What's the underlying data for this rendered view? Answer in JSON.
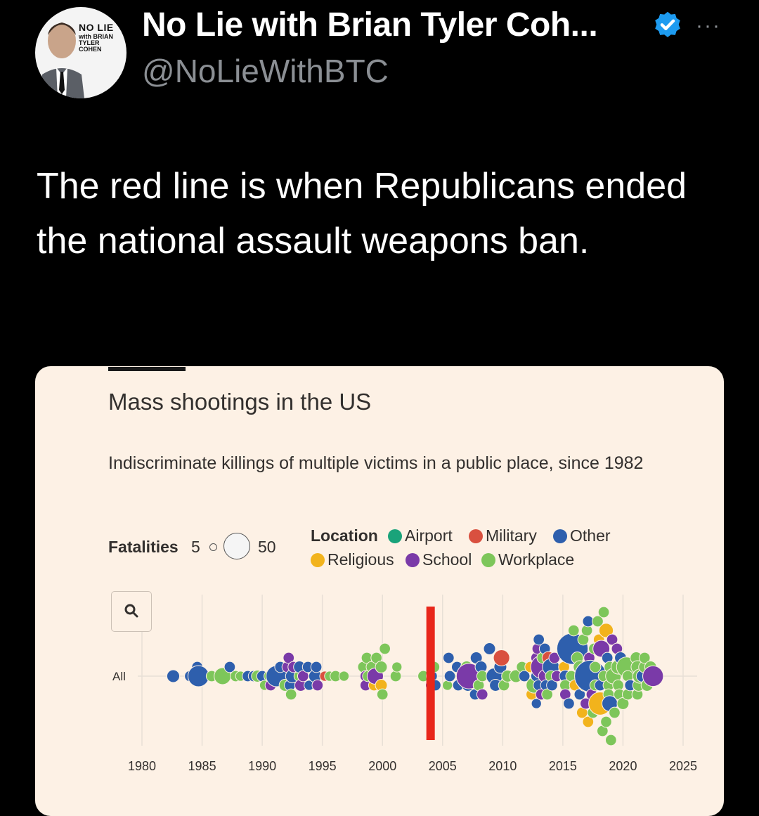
{
  "tweet": {
    "display_name": "No Lie with Brian Tyler Coh...",
    "handle": "@NoLieWithBTC",
    "avatar_text": "NO LIE",
    "avatar_subtext": "with BRIAN TYLER COHEN",
    "more_label": "···",
    "text": "The red line is when Republicans ended the national assault weapons ban."
  },
  "colors": {
    "airport": "#1aa37a",
    "military": "#d9503f",
    "other": "#2e5fad",
    "religious": "#f2b31c",
    "school": "#7a3aa8",
    "workplace": "#7dc65a",
    "red_line": "#e8261a",
    "card_bg": "#fdf1e5",
    "verified": "#1d9bf0"
  },
  "chart_data": {
    "type": "scatter",
    "title": "Mass shootings in the US",
    "subtitle": "Indiscriminate killings of multiple victims in a public place, since 1982",
    "size_legend": {
      "label": "Fatalities",
      "min": "5",
      "max": "50"
    },
    "legend_title": "Location",
    "legend": [
      "Airport",
      "Military",
      "Other",
      "Religious",
      "School",
      "Workplace"
    ],
    "row_label": "All",
    "x_ticks": [
      "1980",
      "1985",
      "1990",
      "1995",
      "2000",
      "2005",
      "2010",
      "2015",
      "2020",
      "2025"
    ],
    "xlim": [
      1980,
      2025
    ],
    "grid": true,
    "annotation_line": {
      "year": 2004
    },
    "points": [
      {
        "x": 1982.6,
        "o": 0,
        "f": 8,
        "c": "other"
      },
      {
        "x": 1984.0,
        "o": 0,
        "f": 6,
        "c": "other"
      },
      {
        "x": 1984.6,
        "o": -1,
        "f": 6,
        "c": "other"
      },
      {
        "x": 1984.7,
        "o": 0,
        "f": 22,
        "c": "other"
      },
      {
        "x": 1985.8,
        "o": 0,
        "f": 6,
        "c": "workplace"
      },
      {
        "x": 1986.7,
        "o": 0,
        "f": 14,
        "c": "workplace"
      },
      {
        "x": 1987.3,
        "o": -1,
        "f": 6,
        "c": "other"
      },
      {
        "x": 1987.8,
        "o": 0,
        "f": 6,
        "c": "workplace"
      },
      {
        "x": 1988.2,
        "o": 0,
        "f": 5,
        "c": "workplace"
      },
      {
        "x": 1988.8,
        "o": 0,
        "f": 6,
        "c": "other"
      },
      {
        "x": 1989.3,
        "o": 0,
        "f": 6,
        "c": "other"
      },
      {
        "x": 1989.6,
        "o": 0,
        "f": 7,
        "c": "workplace"
      },
      {
        "x": 1990.0,
        "o": 0,
        "f": 6,
        "c": "other"
      },
      {
        "x": 1990.2,
        "o": 1,
        "f": 5,
        "c": "workplace"
      },
      {
        "x": 1990.6,
        "o": 0,
        "f": 6,
        "c": "workplace"
      },
      {
        "x": 1990.7,
        "o": 1,
        "f": 6,
        "c": "school"
      },
      {
        "x": 1991.2,
        "o": 0,
        "f": 22,
        "c": "other"
      },
      {
        "x": 1991.5,
        "o": -1,
        "f": 6,
        "c": "other"
      },
      {
        "x": 1991.9,
        "o": 1,
        "f": 7,
        "c": "workplace"
      },
      {
        "x": 1992.1,
        "o": -1,
        "f": 6,
        "c": "school"
      },
      {
        "x": 1992.2,
        "o": -2,
        "f": 6,
        "c": "school"
      },
      {
        "x": 1992.3,
        "o": 1,
        "f": 6,
        "c": "other"
      },
      {
        "x": 1992.4,
        "o": 2,
        "f": 6,
        "c": "workplace"
      },
      {
        "x": 1992.5,
        "o": 0,
        "f": 9,
        "c": "other"
      },
      {
        "x": 1992.6,
        "o": -1,
        "f": 6,
        "c": "school"
      },
      {
        "x": 1993.1,
        "o": 0,
        "f": 6,
        "c": "workplace"
      },
      {
        "x": 1993.1,
        "o": -1,
        "f": 7,
        "c": "other"
      },
      {
        "x": 1993.2,
        "o": 1,
        "f": 7,
        "c": "school"
      },
      {
        "x": 1993.4,
        "o": 0,
        "f": 6,
        "c": "school"
      },
      {
        "x": 1993.8,
        "o": -1,
        "f": 6,
        "c": "other"
      },
      {
        "x": 1993.9,
        "o": 1,
        "f": 5,
        "c": "other"
      },
      {
        "x": 1994.4,
        "o": 0,
        "f": 8,
        "c": "other"
      },
      {
        "x": 1994.5,
        "o": -1,
        "f": 6,
        "c": "other"
      },
      {
        "x": 1994.6,
        "o": 1,
        "f": 6,
        "c": "school"
      },
      {
        "x": 1995.2,
        "o": 0,
        "f": 5,
        "c": "military"
      },
      {
        "x": 1995.6,
        "o": 0,
        "f": 5,
        "c": "workplace"
      },
      {
        "x": 1996.1,
        "o": 0,
        "f": 6,
        "c": "workplace"
      },
      {
        "x": 1996.8,
        "o": 0,
        "f": 5,
        "c": "workplace"
      },
      {
        "x": 1998.4,
        "o": -1,
        "f": 6,
        "c": "workplace"
      },
      {
        "x": 1998.6,
        "o": 0,
        "f": 6,
        "c": "school"
      },
      {
        "x": 1998.6,
        "o": 1,
        "f": 6,
        "c": "school"
      },
      {
        "x": 1998.7,
        "o": -2,
        "f": 6,
        "c": "workplace"
      },
      {
        "x": 1998.8,
        "o": 0,
        "f": 6,
        "c": "workplace"
      },
      {
        "x": 1999.1,
        "o": -1,
        "f": 6,
        "c": "workplace"
      },
      {
        "x": 1999.3,
        "o": 1,
        "f": 6,
        "c": "religious"
      },
      {
        "x": 1999.4,
        "o": 0,
        "f": 13,
        "c": "school"
      },
      {
        "x": 1999.5,
        "o": -2,
        "f": 6,
        "c": "workplace"
      },
      {
        "x": 1999.9,
        "o": -1,
        "f": 7,
        "c": "workplace"
      },
      {
        "x": 1999.9,
        "o": 1,
        "f": 7,
        "c": "religious"
      },
      {
        "x": 2000.0,
        "o": 2,
        "f": 6,
        "c": "workplace"
      },
      {
        "x": 2000.2,
        "o": -3,
        "f": 6,
        "c": "workplace"
      },
      {
        "x": 2001.1,
        "o": 0,
        "f": 6,
        "c": "workplace"
      },
      {
        "x": 2001.2,
        "o": -1,
        "f": 5,
        "c": "workplace"
      },
      {
        "x": 2003.4,
        "o": 0,
        "f": 6,
        "c": "workplace"
      },
      {
        "x": 2004.0,
        "o": 1,
        "f": 5,
        "c": "school"
      },
      {
        "x": 2004.1,
        "o": 0,
        "f": 6,
        "c": "other"
      },
      {
        "x": 2004.3,
        "o": -1,
        "f": 6,
        "c": "workplace"
      },
      {
        "x": 2004.4,
        "o": 1,
        "f": 6,
        "c": "other"
      },
      {
        "x": 2005.5,
        "o": -2,
        "f": 6,
        "c": "other"
      },
      {
        "x": 2005.4,
        "o": 1,
        "f": 5,
        "c": "workplace"
      },
      {
        "x": 2005.6,
        "o": 0,
        "f": 6,
        "c": "other"
      },
      {
        "x": 2006.2,
        "o": -1,
        "f": 6,
        "c": "other"
      },
      {
        "x": 2006.3,
        "o": 1,
        "f": 6,
        "c": "other"
      },
      {
        "x": 2006.6,
        "o": 0,
        "f": 8,
        "c": "workplace"
      },
      {
        "x": 2007.0,
        "o": -1,
        "f": 7,
        "c": "workplace"
      },
      {
        "x": 2007.1,
        "o": 1,
        "f": 7,
        "c": "other"
      },
      {
        "x": 2007.2,
        "o": 0,
        "f": 32,
        "c": "school"
      },
      {
        "x": 2007.7,
        "o": 2,
        "f": 6,
        "c": "other"
      },
      {
        "x": 2007.8,
        "o": -2,
        "f": 7,
        "c": "other"
      },
      {
        "x": 2008.0,
        "o": 1,
        "f": 6,
        "c": "workplace"
      },
      {
        "x": 2008.2,
        "o": -1,
        "f": 7,
        "c": "other"
      },
      {
        "x": 2008.3,
        "o": 0,
        "f": 6,
        "c": "workplace"
      },
      {
        "x": 2008.3,
        "o": 2,
        "f": 6,
        "c": "school"
      },
      {
        "x": 2008.9,
        "o": -3,
        "f": 7,
        "c": "other"
      },
      {
        "x": 2009.3,
        "o": 0,
        "f": 13,
        "c": "other"
      },
      {
        "x": 2009.4,
        "o": 1,
        "f": 7,
        "c": "other"
      },
      {
        "x": 2009.8,
        "o": -1,
        "f": 8,
        "c": "other"
      },
      {
        "x": 2009.9,
        "o": -2,
        "f": 13,
        "c": "military"
      },
      {
        "x": 2010.1,
        "o": 1,
        "f": 6,
        "c": "workplace"
      },
      {
        "x": 2010.4,
        "o": 0,
        "f": 7,
        "c": "workplace"
      },
      {
        "x": 2011.1,
        "o": 0,
        "f": 8,
        "c": "workplace"
      },
      {
        "x": 2011.6,
        "o": -1,
        "f": 6,
        "c": "workplace"
      },
      {
        "x": 2011.8,
        "o": 0,
        "f": 6,
        "c": "other"
      },
      {
        "x": 2012.3,
        "o": -1,
        "f": 6,
        "c": "religious"
      },
      {
        "x": 2012.4,
        "o": 2,
        "f": 6,
        "c": "religious"
      },
      {
        "x": 2012.6,
        "o": 1,
        "f": 12,
        "c": "workplace"
      },
      {
        "x": 2012.8,
        "o": -2,
        "f": 6,
        "c": "school"
      },
      {
        "x": 2012.8,
        "o": 0,
        "f": 6,
        "c": "other"
      },
      {
        "x": 2012.8,
        "o": 3,
        "f": 5,
        "c": "other"
      },
      {
        "x": 2012.9,
        "o": -3,
        "f": 6,
        "c": "school"
      },
      {
        "x": 2013.0,
        "o": -4,
        "f": 6,
        "c": "other"
      },
      {
        "x": 2013.0,
        "o": 1,
        "f": 6,
        "c": "other"
      },
      {
        "x": 2013.2,
        "o": 2,
        "f": 6,
        "c": "school"
      },
      {
        "x": 2013.3,
        "o": -1,
        "f": 27,
        "c": "school"
      },
      {
        "x": 2013.3,
        "o": -2,
        "f": 6,
        "c": "workplace"
      },
      {
        "x": 2013.5,
        "o": 0,
        "f": 8,
        "c": "school"
      },
      {
        "x": 2013.5,
        "o": -3,
        "f": 6,
        "c": "other"
      },
      {
        "x": 2013.6,
        "o": 1,
        "f": 6,
        "c": "other"
      },
      {
        "x": 2013.7,
        "o": 2,
        "f": 6,
        "c": "workplace"
      },
      {
        "x": 2013.8,
        "o": -2,
        "f": 8,
        "c": "military"
      },
      {
        "x": 2014.0,
        "o": -1,
        "f": 14,
        "c": "other"
      },
      {
        "x": 2014.0,
        "o": 0,
        "f": 6,
        "c": "workplace"
      },
      {
        "x": 2014.1,
        "o": 1,
        "f": 6,
        "c": "other"
      },
      {
        "x": 2014.3,
        "o": -2,
        "f": 6,
        "c": "school"
      },
      {
        "x": 2014.5,
        "o": 0,
        "f": 6,
        "c": "school"
      },
      {
        "x": 2015.1,
        "o": -1,
        "f": 6,
        "c": "religious"
      },
      {
        "x": 2015.2,
        "o": 0,
        "f": 7,
        "c": "other"
      },
      {
        "x": 2015.2,
        "o": 1,
        "f": 6,
        "c": "workplace"
      },
      {
        "x": 2015.2,
        "o": 2,
        "f": 6,
        "c": "school"
      },
      {
        "x": 2015.3,
        "o": -3,
        "f": 6,
        "c": "workplace"
      },
      {
        "x": 2015.5,
        "o": 3,
        "f": 6,
        "c": "other"
      },
      {
        "x": 2015.6,
        "o": -4,
        "f": 6,
        "c": "workplace"
      },
      {
        "x": 2015.7,
        "o": 0,
        "f": 6,
        "c": "workplace"
      },
      {
        "x": 2015.8,
        "o": -3,
        "f": 48,
        "c": "other"
      },
      {
        "x": 2015.9,
        "o": -5,
        "f": 6,
        "c": "workplace"
      },
      {
        "x": 2016.0,
        "o": 1,
        "f": 6,
        "c": "religious"
      },
      {
        "x": 2016.2,
        "o": -2,
        "f": 7,
        "c": "workplace"
      },
      {
        "x": 2016.4,
        "o": -1,
        "f": 8,
        "c": "workplace"
      },
      {
        "x": 2016.4,
        "o": 2,
        "f": 6,
        "c": "other"
      },
      {
        "x": 2016.6,
        "o": 0,
        "f": 6,
        "c": "workplace"
      },
      {
        "x": 2016.6,
        "o": 4,
        "f": 6,
        "c": "religious"
      },
      {
        "x": 2016.7,
        "o": -4,
        "f": 6,
        "c": "workplace"
      },
      {
        "x": 2016.8,
        "o": 1,
        "f": 7,
        "c": "religious"
      },
      {
        "x": 2016.9,
        "o": 3,
        "f": 6,
        "c": "school"
      },
      {
        "x": 2017.0,
        "o": -5,
        "f": 6,
        "c": "workplace"
      },
      {
        "x": 2017.1,
        "o": 5,
        "f": 6,
        "c": "religious"
      },
      {
        "x": 2017.1,
        "o": -6,
        "f": 6,
        "c": "other"
      },
      {
        "x": 2017.2,
        "o": -2,
        "f": 6,
        "c": "school"
      },
      {
        "x": 2017.3,
        "o": 0,
        "f": 50,
        "c": "other"
      },
      {
        "x": 2017.4,
        "o": 2,
        "f": 6,
        "c": "school"
      },
      {
        "x": 2017.5,
        "o": 4,
        "f": 6,
        "c": "workplace"
      },
      {
        "x": 2017.6,
        "o": -3,
        "f": 6,
        "c": "workplace"
      },
      {
        "x": 2017.7,
        "o": 1,
        "f": 6,
        "c": "workplace"
      },
      {
        "x": 2017.7,
        "o": -1,
        "f": 6,
        "c": "workplace"
      },
      {
        "x": 2017.9,
        "o": -6,
        "f": 6,
        "c": "workplace"
      },
      {
        "x": 2018.0,
        "o": 3,
        "f": 6,
        "c": "workplace"
      },
      {
        "x": 2018.0,
        "o": -4,
        "f": 6,
        "c": "religious"
      },
      {
        "x": 2018.1,
        "o": 1,
        "f": 6,
        "c": "other"
      },
      {
        "x": 2018.1,
        "o": 3,
        "f": 26,
        "c": "religious"
      },
      {
        "x": 2018.2,
        "o": -3,
        "f": 14,
        "c": "school"
      },
      {
        "x": 2018.3,
        "o": 6,
        "f": 6,
        "c": "workplace"
      },
      {
        "x": 2018.4,
        "o": 0,
        "f": 6,
        "c": "workplace"
      },
      {
        "x": 2018.4,
        "o": -7,
        "f": 6,
        "c": "workplace"
      },
      {
        "x": 2018.6,
        "o": -5,
        "f": 10,
        "c": "religious"
      },
      {
        "x": 2018.6,
        "o": 5,
        "f": 6,
        "c": "workplace"
      },
      {
        "x": 2018.7,
        "o": -2,
        "f": 6,
        "c": "other"
      },
      {
        "x": 2018.8,
        "o": 1,
        "f": 6,
        "c": "workplace"
      },
      {
        "x": 2018.8,
        "o": 2,
        "f": 6,
        "c": "workplace"
      },
      {
        "x": 2018.9,
        "o": 3,
        "f": 12,
        "c": "other"
      },
      {
        "x": 2018.9,
        "o": -1,
        "f": 6,
        "c": "workplace"
      },
      {
        "x": 2019.0,
        "o": 7,
        "f": 6,
        "c": "workplace"
      },
      {
        "x": 2019.1,
        "o": -4,
        "f": 6,
        "c": "school"
      },
      {
        "x": 2019.2,
        "o": 0,
        "f": 12,
        "c": "workplace"
      },
      {
        "x": 2019.3,
        "o": 4,
        "f": 6,
        "c": "workplace"
      },
      {
        "x": 2019.5,
        "o": -3,
        "f": 6,
        "c": "school"
      },
      {
        "x": 2019.6,
        "o": 1,
        "f": 6,
        "c": "workplace"
      },
      {
        "x": 2019.6,
        "o": -1,
        "f": 10,
        "c": "workplace"
      },
      {
        "x": 2019.7,
        "o": 2,
        "f": 6,
        "c": "workplace"
      },
      {
        "x": 2019.8,
        "o": -2,
        "f": 7,
        "c": "other"
      },
      {
        "x": 2020.0,
        "o": 3,
        "f": 7,
        "c": "workplace"
      },
      {
        "x": 2020.3,
        "o": -1,
        "f": 20,
        "c": "workplace"
      },
      {
        "x": 2020.4,
        "o": 2,
        "f": 6,
        "c": "workplace"
      },
      {
        "x": 2020.4,
        "o": 0,
        "f": 6,
        "c": "workplace"
      },
      {
        "x": 2020.6,
        "o": 1,
        "f": 6,
        "c": "other"
      },
      {
        "x": 2021.1,
        "o": -2,
        "f": 7,
        "c": "workplace"
      },
      {
        "x": 2021.2,
        "o": -1,
        "f": 8,
        "c": "workplace"
      },
      {
        "x": 2021.2,
        "o": 2,
        "f": 6,
        "c": "workplace"
      },
      {
        "x": 2021.3,
        "o": 1,
        "f": 7,
        "c": "workplace"
      },
      {
        "x": 2021.4,
        "o": 0,
        "f": 10,
        "c": "workplace"
      },
      {
        "x": 2021.6,
        "o": 0,
        "f": 7,
        "c": "other"
      },
      {
        "x": 2021.8,
        "o": -1,
        "f": 7,
        "c": "workplace"
      },
      {
        "x": 2021.8,
        "o": -2,
        "f": 6,
        "c": "workplace"
      },
      {
        "x": 2022.0,
        "o": 1,
        "f": 7,
        "c": "workplace"
      },
      {
        "x": 2022.1,
        "o": 0,
        "f": 6,
        "c": "other"
      },
      {
        "x": 2022.3,
        "o": -1,
        "f": 7,
        "c": "workplace"
      },
      {
        "x": 2022.5,
        "o": 0,
        "f": 21,
        "c": "school"
      }
    ]
  }
}
